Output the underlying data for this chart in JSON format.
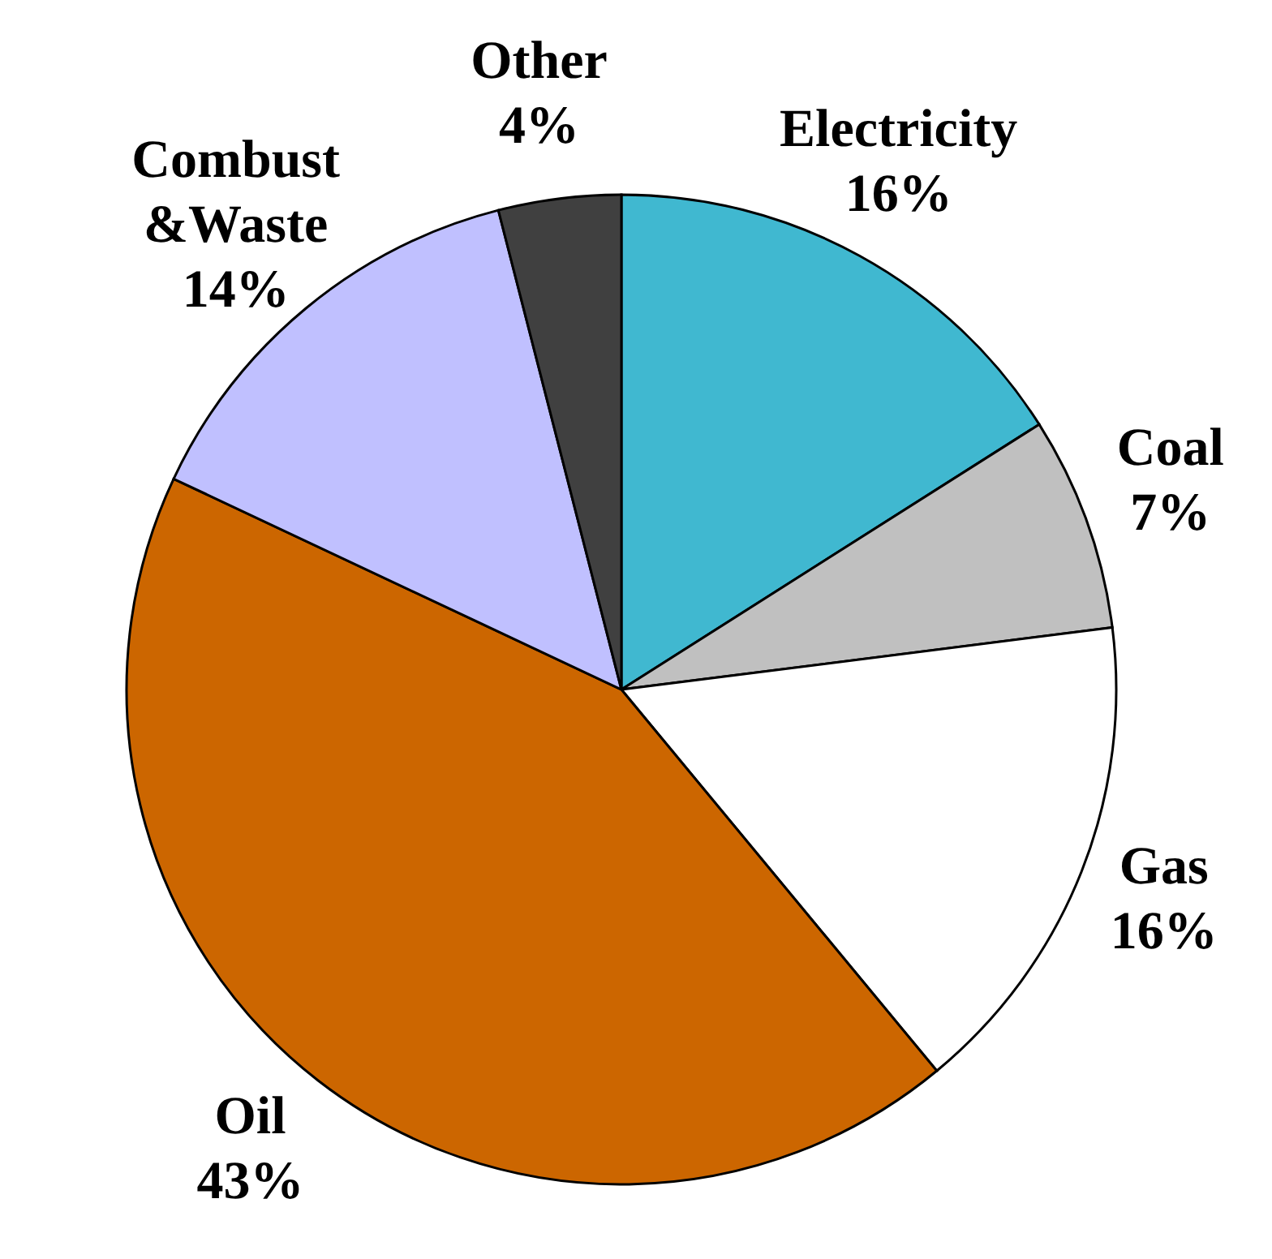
{
  "chart_data": {
    "type": "pie",
    "categories": [
      "Electricity",
      "Coal",
      "Gas",
      "Oil",
      "Combust &Waste",
      "Other"
    ],
    "values": [
      16,
      7,
      16,
      43,
      14,
      4
    ],
    "value_labels": [
      "16%",
      "7%",
      "16%",
      "43%",
      "14%",
      "4%"
    ],
    "colors": [
      "#40b8d0",
      "#c0c0c0",
      "#ffffff",
      "#cc6600",
      "#c0c0ff",
      "#404040"
    ],
    "legend": false
  }
}
